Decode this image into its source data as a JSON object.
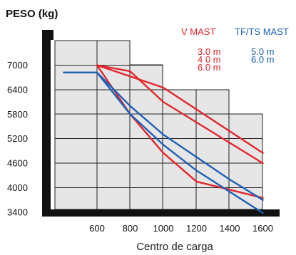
{
  "chart_data": {
    "type": "line",
    "title": "PESO (kg)",
    "xlabel": "Centro de carga",
    "ylabel": "PESO (kg)",
    "x_ticks": [
      600,
      800,
      1000,
      1200,
      1400,
      1600
    ],
    "y_ticks": [
      3400,
      4000,
      4600,
      5200,
      5800,
      6400,
      7000
    ],
    "xlim": [
      400,
      1700
    ],
    "ylim": [
      3250,
      7400
    ],
    "grid": true,
    "legend": {
      "position": "top-right",
      "groups": [
        {
          "heading": "V MAST",
          "color": "#e3262d",
          "items": [
            "3.0 m",
            "4 0 m",
            "6.0 m"
          ]
        },
        {
          "heading": "TF/TS MAST",
          "color": "#1f5fb4",
          "items": [
            "5.0 m",
            "6.0 m"
          ]
        }
      ]
    },
    "series": [
      {
        "group": "V MAST",
        "color": "#e3262d",
        "x": [
          600,
          1000,
          1600
        ],
        "y": [
          7000,
          6450,
          4850
        ]
      },
      {
        "group": "V MAST",
        "color": "#e3262d",
        "x": [
          600,
          800,
          1000,
          1600
        ],
        "y": [
          7000,
          6850,
          6100,
          4600
        ]
      },
      {
        "group": "V MAST",
        "color": "#e3262d",
        "x": [
          600,
          800,
          1000,
          1200,
          1600
        ],
        "y": [
          7000,
          5800,
          4850,
          4150,
          3750
        ]
      },
      {
        "group": "TF/TS MAST",
        "color": "#1f5fb4",
        "x": [
          400,
          600,
          800,
          1000,
          1200,
          1400,
          1600
        ],
        "y": [
          6820,
          6820,
          6000,
          5300,
          4750,
          4200,
          3700
        ]
      },
      {
        "group": "TF/TS MAST",
        "color": "#1f5fb4",
        "x": [
          400,
          600,
          800,
          1000,
          1200,
          1400,
          1600
        ],
        "y": [
          6820,
          6820,
          5800,
          5050,
          4420,
          3900,
          3380
        ]
      }
    ]
  }
}
